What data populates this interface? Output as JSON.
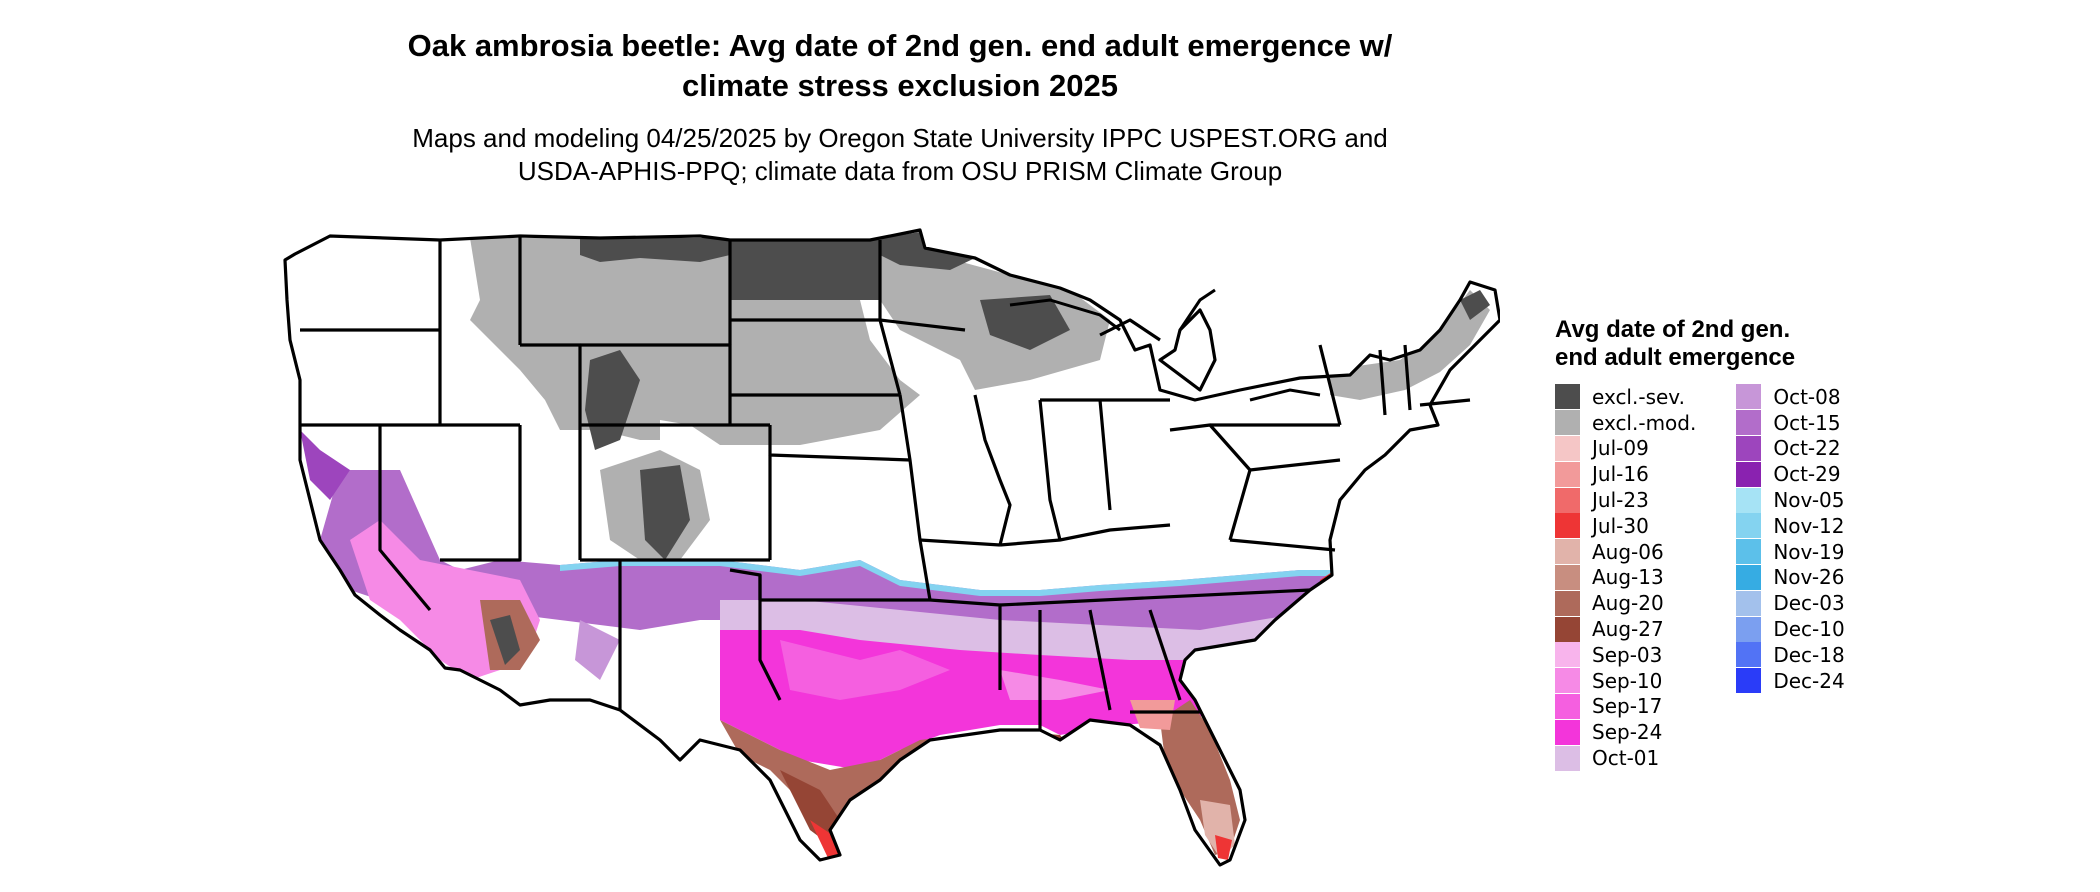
{
  "map": {
    "title_line1": "Oak ambrosia beetle: Avg date of 2nd gen. end adult emergence w/",
    "title_line2": "climate stress exclusion 2025",
    "subtitle_line1": "Maps and modeling 04/25/2025 by Oregon State University IPPC USPEST.ORG and",
    "subtitle_line2": "USDA-APHIS-PPQ; climate data from OSU PRISM Climate Group",
    "region": "Contiguous United States",
    "legend": {
      "title": "Avg date of 2nd gen. end adult emergence",
      "column1": [
        {
          "label": "excl.-sev.",
          "color": "#4d4d4d"
        },
        {
          "label": "excl.-mod.",
          "color": "#b0b0b0"
        },
        {
          "label": "Jul-09",
          "color": "#f5c6c6"
        },
        {
          "label": "Jul-16",
          "color": "#f29a9a"
        },
        {
          "label": "Jul-23",
          "color": "#f06a6a"
        },
        {
          "label": "Jul-30",
          "color": "#ee3535"
        },
        {
          "label": "Aug-06",
          "color": "#e1b3aa"
        },
        {
          "label": "Aug-13",
          "color": "#c88e80"
        },
        {
          "label": "Aug-20",
          "color": "#ae6a5b"
        },
        {
          "label": "Aug-27",
          "color": "#954535"
        },
        {
          "label": "Sep-03",
          "color": "#f8b4ec"
        },
        {
          "label": "Sep-10",
          "color": "#f68ae6"
        },
        {
          "label": "Sep-17",
          "color": "#f55fe0"
        },
        {
          "label": "Sep-24",
          "color": "#f335da"
        },
        {
          "label": "Oct-01",
          "color": "#dcbee5"
        }
      ],
      "column2": [
        {
          "label": "Oct-08",
          "color": "#c796d8"
        },
        {
          "label": "Oct-15",
          "color": "#b26dca"
        },
        {
          "label": "Oct-22",
          "color": "#9d45bd"
        },
        {
          "label": "Oct-29",
          "color": "#8a22b0"
        },
        {
          "label": "Nov-05",
          "color": "#a6e3f5"
        },
        {
          "label": "Nov-12",
          "color": "#84d3f0"
        },
        {
          "label": "Nov-19",
          "color": "#5cc0ea"
        },
        {
          "label": "Nov-26",
          "color": "#36ace3"
        },
        {
          "label": "Dec-03",
          "color": "#a3c1ec"
        },
        {
          "label": "Dec-10",
          "color": "#7b9ff0"
        },
        {
          "label": "Dec-18",
          "color": "#5273f5"
        },
        {
          "label": "Dec-24",
          "color": "#2a3cf8"
        }
      ]
    }
  }
}
